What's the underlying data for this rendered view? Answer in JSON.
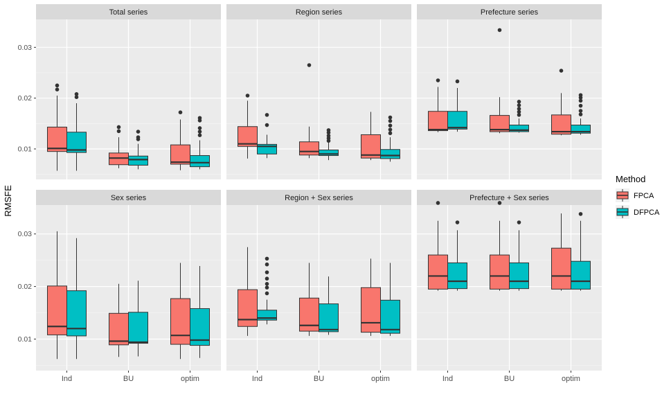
{
  "chart_data": {
    "type": "boxplot",
    "ylabel": "RMSFE",
    "xlabel": "",
    "categories": [
      "Ind",
      "BU",
      "optim"
    ],
    "ylim": [
      0.004,
      0.0355
    ],
    "yticks": [
      0.01,
      0.02,
      0.03
    ],
    "ytick_labels": [
      "0.01",
      "0.02",
      "0.03"
    ],
    "legend": {
      "title": "Method",
      "position": "right",
      "entries": [
        {
          "name": "FPCA",
          "color": "#F8766D"
        },
        {
          "name": "DFPCA",
          "color": "#00BFC4"
        }
      ]
    },
    "panels": [
      {
        "title": "Total series",
        "boxes": [
          {
            "cat": "Ind",
            "method": "FPCA",
            "whislo": 0.0057,
            "q1": 0.0095,
            "med": 0.0101,
            "q3": 0.0143,
            "whishi": 0.0205,
            "outliers": [
              0.0217,
              0.0225
            ]
          },
          {
            "cat": "Ind",
            "method": "DFPCA",
            "whislo": 0.0057,
            "q1": 0.0093,
            "med": 0.0098,
            "q3": 0.0133,
            "whishi": 0.019,
            "outliers": [
              0.0202,
              0.0208
            ]
          },
          {
            "cat": "BU",
            "method": "FPCA",
            "whislo": 0.0062,
            "q1": 0.0069,
            "med": 0.0082,
            "q3": 0.0092,
            "whishi": 0.0123,
            "outliers": [
              0.0135,
              0.0143
            ]
          },
          {
            "cat": "BU",
            "method": "DFPCA",
            "whislo": 0.006,
            "q1": 0.0068,
            "med": 0.0079,
            "q3": 0.0086,
            "whishi": 0.011,
            "outliers": [
              0.0119,
              0.0123,
              0.0134
            ]
          },
          {
            "cat": "optim",
            "method": "FPCA",
            "whislo": 0.0058,
            "q1": 0.007,
            "med": 0.0074,
            "q3": 0.0108,
            "whishi": 0.0158,
            "outliers": [
              0.0172
            ]
          },
          {
            "cat": "optim",
            "method": "DFPCA",
            "whislo": 0.006,
            "q1": 0.0065,
            "med": 0.0073,
            "q3": 0.0087,
            "whishi": 0.0117,
            "outliers": [
              0.0127,
              0.0134,
              0.0141,
              0.0156,
              0.0161
            ]
          }
        ]
      },
      {
        "title": "Region series",
        "boxes": [
          {
            "cat": "Ind",
            "method": "FPCA",
            "whislo": 0.0081,
            "q1": 0.0105,
            "med": 0.011,
            "q3": 0.0144,
            "whishi": 0.0195,
            "outliers": [
              0.0205
            ]
          },
          {
            "cat": "Ind",
            "method": "DFPCA",
            "whislo": 0.0082,
            "q1": 0.009,
            "med": 0.0105,
            "q3": 0.0109,
            "whishi": 0.0128,
            "outliers": [
              0.0147,
              0.0167
            ]
          },
          {
            "cat": "BU",
            "method": "FPCA",
            "whislo": 0.0082,
            "q1": 0.0088,
            "med": 0.0095,
            "q3": 0.0114,
            "whishi": 0.0144,
            "outliers": [
              0.0265
            ]
          },
          {
            "cat": "BU",
            "method": "DFPCA",
            "whislo": 0.0078,
            "q1": 0.0087,
            "med": 0.009,
            "q3": 0.0098,
            "whishi": 0.0113,
            "outliers": [
              0.0116,
              0.0121,
              0.0126,
              0.0132,
              0.0137
            ]
          },
          {
            "cat": "optim",
            "method": "FPCA",
            "whislo": 0.0078,
            "q1": 0.0082,
            "med": 0.0088,
            "q3": 0.0128,
            "whishi": 0.0173,
            "outliers": []
          },
          {
            "cat": "optim",
            "method": "DFPCA",
            "whislo": 0.0075,
            "q1": 0.0081,
            "med": 0.0087,
            "q3": 0.0099,
            "whishi": 0.0123,
            "outliers": [
              0.0131,
              0.0138,
              0.0146,
              0.0155,
              0.0162
            ]
          }
        ]
      },
      {
        "title": "Prefecture series",
        "boxes": [
          {
            "cat": "Ind",
            "method": "FPCA",
            "whislo": 0.0133,
            "q1": 0.0136,
            "med": 0.0138,
            "q3": 0.0174,
            "whishi": 0.0222,
            "outliers": [
              0.0235
            ]
          },
          {
            "cat": "Ind",
            "method": "DFPCA",
            "whislo": 0.0134,
            "q1": 0.0139,
            "med": 0.0142,
            "q3": 0.0174,
            "whishi": 0.022,
            "outliers": [
              0.0233
            ]
          },
          {
            "cat": "BU",
            "method": "FPCA",
            "whislo": 0.0131,
            "q1": 0.0134,
            "med": 0.0138,
            "q3": 0.0166,
            "whishi": 0.0202,
            "outliers": [
              0.0334
            ]
          },
          {
            "cat": "BU",
            "method": "DFPCA",
            "whislo": 0.0132,
            "q1": 0.0134,
            "med": 0.0137,
            "q3": 0.0147,
            "whishi": 0.016,
            "outliers": [
              0.0167,
              0.0173,
              0.0179,
              0.0186,
              0.0193
            ]
          },
          {
            "cat": "optim",
            "method": "FPCA",
            "whislo": 0.0127,
            "q1": 0.0129,
            "med": 0.0134,
            "q3": 0.0167,
            "whishi": 0.021,
            "outliers": [
              0.0254
            ]
          },
          {
            "cat": "optim",
            "method": "DFPCA",
            "whislo": 0.0128,
            "q1": 0.0131,
            "med": 0.0134,
            "q3": 0.0147,
            "whishi": 0.016,
            "outliers": [
              0.0168,
              0.0175,
              0.0185,
              0.0195,
              0.0201,
              0.0206
            ]
          }
        ]
      },
      {
        "title": "Sex series",
        "boxes": [
          {
            "cat": "Ind",
            "method": "FPCA",
            "whislo": 0.0062,
            "q1": 0.0108,
            "med": 0.0124,
            "q3": 0.0201,
            "whishi": 0.0305,
            "outliers": []
          },
          {
            "cat": "Ind",
            "method": "DFPCA",
            "whislo": 0.0062,
            "q1": 0.0106,
            "med": 0.012,
            "q3": 0.0192,
            "whishi": 0.0292,
            "outliers": []
          },
          {
            "cat": "BU",
            "method": "FPCA",
            "whislo": 0.0066,
            "q1": 0.0089,
            "med": 0.0096,
            "q3": 0.0149,
            "whishi": 0.0205,
            "outliers": []
          },
          {
            "cat": "BU",
            "method": "DFPCA",
            "whislo": 0.0067,
            "q1": 0.0092,
            "med": 0.0094,
            "q3": 0.0151,
            "whishi": 0.0211,
            "outliers": []
          },
          {
            "cat": "optim",
            "method": "FPCA",
            "whislo": 0.0062,
            "q1": 0.009,
            "med": 0.0107,
            "q3": 0.0177,
            "whishi": 0.0245,
            "outliers": []
          },
          {
            "cat": "optim",
            "method": "DFPCA",
            "whislo": 0.0064,
            "q1": 0.0088,
            "med": 0.0098,
            "q3": 0.0158,
            "whishi": 0.0239,
            "outliers": []
          }
        ]
      },
      {
        "title": "Region + Sex series",
        "boxes": [
          {
            "cat": "Ind",
            "method": "FPCA",
            "whislo": 0.0106,
            "q1": 0.0124,
            "med": 0.0137,
            "q3": 0.0194,
            "whishi": 0.0275,
            "outliers": []
          },
          {
            "cat": "Ind",
            "method": "DFPCA",
            "whislo": 0.0128,
            "q1": 0.0136,
            "med": 0.014,
            "q3": 0.0155,
            "whishi": 0.0175,
            "outliers": [
              0.0187,
              0.0198,
              0.0205,
              0.0215,
              0.0227,
              0.0242,
              0.0253
            ]
          },
          {
            "cat": "BU",
            "method": "FPCA",
            "whislo": 0.0106,
            "q1": 0.0115,
            "med": 0.0126,
            "q3": 0.0178,
            "whishi": 0.0245,
            "outliers": []
          },
          {
            "cat": "BU",
            "method": "DFPCA",
            "whislo": 0.0108,
            "q1": 0.0114,
            "med": 0.0118,
            "q3": 0.0167,
            "whishi": 0.0219,
            "outliers": []
          },
          {
            "cat": "optim",
            "method": "FPCA",
            "whislo": 0.0106,
            "q1": 0.0113,
            "med": 0.0131,
            "q3": 0.0198,
            "whishi": 0.0253,
            "outliers": []
          },
          {
            "cat": "optim",
            "method": "DFPCA",
            "whislo": 0.0106,
            "q1": 0.0111,
            "med": 0.0118,
            "q3": 0.0174,
            "whishi": 0.0245,
            "outliers": []
          }
        ]
      },
      {
        "title": "Prefecture + Sex series",
        "boxes": [
          {
            "cat": "Ind",
            "method": "FPCA",
            "whislo": 0.0192,
            "q1": 0.0195,
            "med": 0.022,
            "q3": 0.026,
            "whishi": 0.0325,
            "outliers": [
              0.0359
            ]
          },
          {
            "cat": "Ind",
            "method": "DFPCA",
            "whislo": 0.0192,
            "q1": 0.0196,
            "med": 0.021,
            "q3": 0.0245,
            "whishi": 0.0307,
            "outliers": [
              0.0322
            ]
          },
          {
            "cat": "BU",
            "method": "FPCA",
            "whislo": 0.0192,
            "q1": 0.0195,
            "med": 0.022,
            "q3": 0.026,
            "whishi": 0.0325,
            "outliers": [
              0.0359
            ]
          },
          {
            "cat": "BU",
            "method": "DFPCA",
            "whislo": 0.0192,
            "q1": 0.0196,
            "med": 0.021,
            "q3": 0.0245,
            "whishi": 0.0307,
            "outliers": [
              0.0322
            ]
          },
          {
            "cat": "optim",
            "method": "FPCA",
            "whislo": 0.0192,
            "q1": 0.0195,
            "med": 0.022,
            "q3": 0.0273,
            "whishi": 0.0339,
            "outliers": []
          },
          {
            "cat": "optim",
            "method": "DFPCA",
            "whislo": 0.0192,
            "q1": 0.0195,
            "med": 0.021,
            "q3": 0.0248,
            "whishi": 0.0325,
            "outliers": [
              0.0338
            ]
          }
        ]
      }
    ]
  }
}
